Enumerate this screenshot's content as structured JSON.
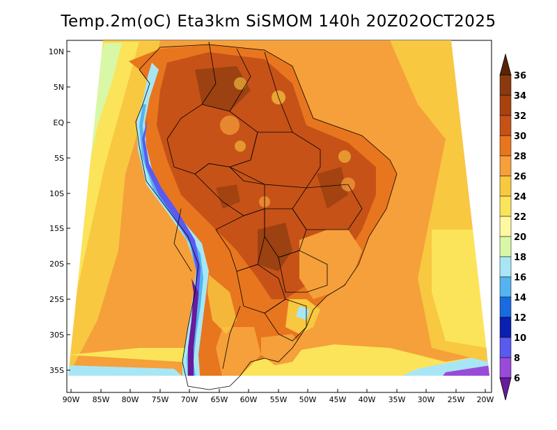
{
  "title": "Temp.2m(oC) Eta3km SiSMOM 140h 20Z02OCT2025",
  "axes": {
    "lat_labels": [
      "10N",
      "5N",
      "EQ",
      "5S",
      "10S",
      "15S",
      "20S",
      "25S",
      "30S",
      "35S"
    ],
    "lat_values": [
      10,
      5,
      0,
      -5,
      -10,
      -15,
      -20,
      -25,
      -30,
      -35
    ],
    "lon_labels": [
      "90W",
      "85W",
      "80W",
      "75W",
      "70W",
      "65W",
      "60W",
      "55W",
      "50W",
      "45W",
      "40W",
      "35W",
      "30W",
      "25W",
      "20W"
    ],
    "lon_values": [
      -90,
      -85,
      -80,
      -75,
      -70,
      -65,
      -60,
      -55,
      -50,
      -45,
      -40,
      -35,
      -30,
      -25,
      -20
    ],
    "lat_range": [
      -38,
      12
    ],
    "lon_range": [
      -92,
      -20
    ]
  },
  "colorbar": {
    "labels": [
      "36",
      "34",
      "32",
      "30",
      "28",
      "26",
      "24",
      "22",
      "20",
      "18",
      "16",
      "14",
      "12",
      "10",
      "8",
      "6"
    ],
    "colors": [
      "#5a2306",
      "#8a3a0e",
      "#c65218",
      "#e8761e",
      "#f5a03a",
      "#f8c840",
      "#fbe45a",
      "#fff8a0",
      "#d8f8a8",
      "#a8e6f5",
      "#55b4f0",
      "#1a6ae0",
      "#0a20b0",
      "#5a5af0",
      "#9a4ad8",
      "#6a1a9a"
    ]
  },
  "map": {
    "type": "filled-contour",
    "variable": "2 m temperature",
    "units": "oC"
  }
}
